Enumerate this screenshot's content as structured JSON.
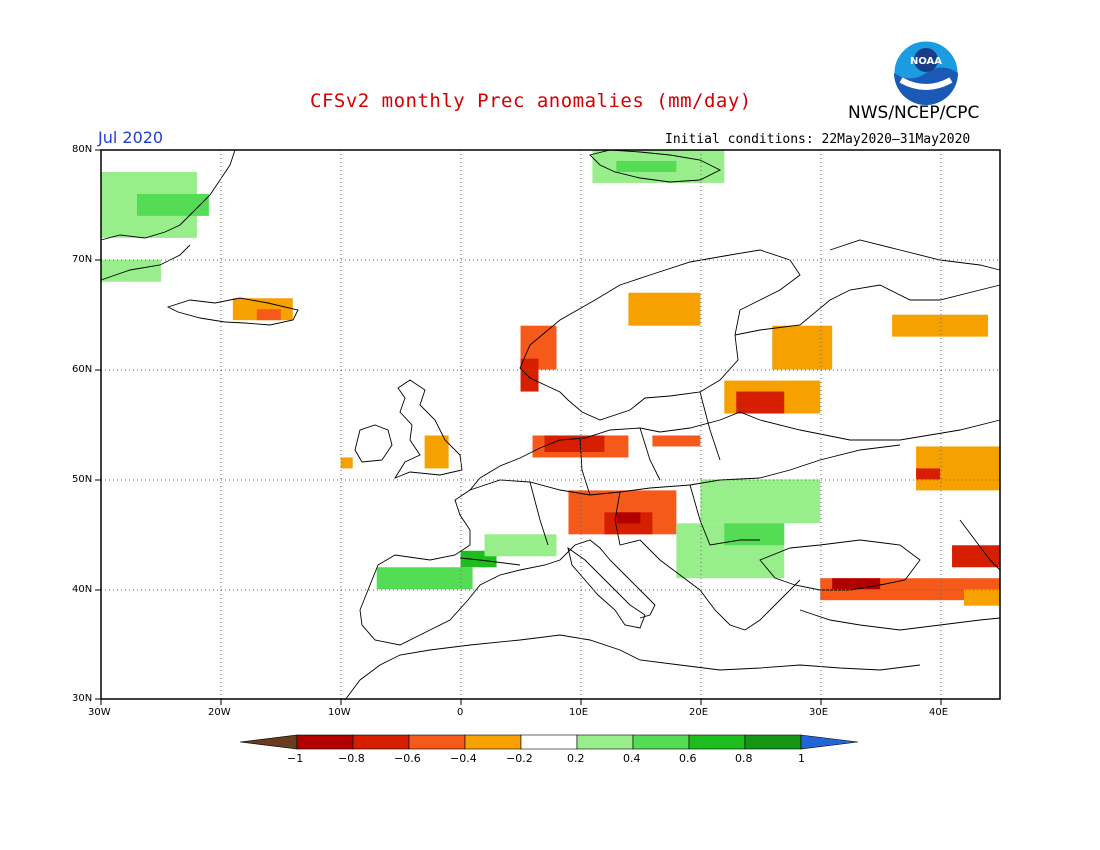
{
  "title": "CFSv2 monthly Prec anomalies (mm/day)",
  "organization": "NWS/NCEP/CPC",
  "logo_text": "NOAA",
  "month": "Jul 2020",
  "initial_conditions": "Initial conditions: 22May2020–31May2020",
  "map": {
    "lon_range": [
      -30,
      45
    ],
    "lat_range": [
      30,
      80
    ],
    "grid": true,
    "lat_labels": [
      "80N",
      "70N",
      "60N",
      "50N",
      "40N",
      "30N"
    ],
    "lon_labels": [
      "30W",
      "20W",
      "10W",
      "0",
      "10E",
      "20E",
      "30E",
      "40E"
    ]
  },
  "colorbar": {
    "labels": [
      "−1",
      "−0.8",
      "−0.6",
      "−0.4",
      "−0.2",
      "0.2",
      "0.4",
      "0.6",
      "0.8",
      "1"
    ],
    "colors": [
      "#6b3a1f",
      "#b20000",
      "#d61e00",
      "#f55a1a",
      "#f7a100",
      "#ffffff",
      "#98ee8a",
      "#54dd54",
      "#1dbd1d",
      "#149614",
      "#2066d6"
    ]
  },
  "anomaly_regions": [
    {
      "name": "greenland",
      "color": "#98ee8a",
      "lon": [
        -30,
        -22
      ],
      "lat": [
        72,
        78
      ]
    },
    {
      "name": "greenland-wet",
      "color": "#54dd54",
      "lon": [
        -27,
        -21
      ],
      "lat": [
        74,
        76
      ]
    },
    {
      "name": "greenland-south",
      "color": "#98ee8a",
      "lon": [
        -30,
        -25
      ],
      "lat": [
        68,
        70
      ]
    },
    {
      "name": "svalbard",
      "color": "#98ee8a",
      "lon": [
        11,
        22
      ],
      "lat": [
        77,
        80
      ]
    },
    {
      "name": "svalbard-wet",
      "color": "#54dd54",
      "lon": [
        13,
        18
      ],
      "lat": [
        78,
        79
      ]
    },
    {
      "name": "iceland",
      "color": "#f7a100",
      "lon": [
        -19,
        -14
      ],
      "lat": [
        64.5,
        66.5
      ]
    },
    {
      "name": "iceland-dry",
      "color": "#f55a1a",
      "lon": [
        -17,
        -15
      ],
      "lat": [
        64.5,
        65.5
      ]
    },
    {
      "name": "norway-west",
      "color": "#f55a1a",
      "lon": [
        5,
        8
      ],
      "lat": [
        60,
        64
      ]
    },
    {
      "name": "norway-coast",
      "color": "#d61e00",
      "lon": [
        5,
        6.5
      ],
      "lat": [
        58,
        61
      ]
    },
    {
      "name": "sweden-north",
      "color": "#f7a100",
      "lon": [
        14,
        20
      ],
      "lat": [
        64,
        67
      ]
    },
    {
      "name": "finland-east",
      "color": "#f7a100",
      "lon": [
        26,
        31
      ],
      "lat": [
        60,
        64
      ]
    },
    {
      "name": "russia-north",
      "color": "#f7a100",
      "lon": [
        36,
        44
      ],
      "lat": [
        63,
        65
      ]
    },
    {
      "name": "baltic",
      "color": "#f7a100",
      "lon": [
        22,
        30
      ],
      "lat": [
        56,
        59
      ]
    },
    {
      "name": "baltic-dry",
      "color": "#d61e00",
      "lon": [
        23,
        27
      ],
      "lat": [
        56,
        58
      ]
    },
    {
      "name": "britain",
      "color": "#f7a100",
      "lon": [
        -3,
        -1
      ],
      "lat": [
        51,
        54
      ]
    },
    {
      "name": "ireland",
      "color": "#f7a100",
      "lon": [
        -10,
        -9
      ],
      "lat": [
        51,
        52
      ]
    },
    {
      "name": "germany",
      "color": "#f55a1a",
      "lon": [
        6,
        14
      ],
      "lat": [
        52,
        54
      ]
    },
    {
      "name": "germany-dry",
      "color": "#d61e00",
      "lon": [
        7,
        12
      ],
      "lat": [
        52.5,
        54
      ]
    },
    {
      "name": "poland",
      "color": "#f55a1a",
      "lon": [
        16,
        20
      ],
      "lat": [
        53,
        54
      ]
    },
    {
      "name": "alps",
      "color": "#f55a1a",
      "lon": [
        9,
        18
      ],
      "lat": [
        45,
        49
      ]
    },
    {
      "name": "alps-dry",
      "color": "#d61e00",
      "lon": [
        12,
        16
      ],
      "lat": [
        45,
        47
      ]
    },
    {
      "name": "alps-core",
      "color": "#b20000",
      "lon": [
        13,
        15
      ],
      "lat": [
        46,
        47
      ]
    },
    {
      "name": "spain",
      "color": "#54dd54",
      "lon": [
        -7,
        1
      ],
      "lat": [
        40,
        42
      ]
    },
    {
      "name": "pyrenees",
      "color": "#1dbd1d",
      "lon": [
        0,
        3
      ],
      "lat": [
        42,
        43.5
      ]
    },
    {
      "name": "france-south",
      "color": "#98ee8a",
      "lon": [
        2,
        8
      ],
      "lat": [
        43,
        45
      ]
    },
    {
      "name": "balkans",
      "color": "#98ee8a",
      "lon": [
        18,
        27
      ],
      "lat": [
        41,
        46
      ]
    },
    {
      "name": "romania",
      "color": "#98ee8a",
      "lon": [
        20,
        30
      ],
      "lat": [
        46,
        50
      ]
    },
    {
      "name": "romania-wet",
      "color": "#54dd54",
      "lon": [
        22,
        27
      ],
      "lat": [
        44,
        46
      ]
    },
    {
      "name": "ukraine-east",
      "color": "#f7a100",
      "lon": [
        38,
        45
      ],
      "lat": [
        49,
        53
      ]
    },
    {
      "name": "ukraine-dry",
      "color": "#d61e00",
      "lon": [
        38,
        40
      ],
      "lat": [
        50,
        51
      ]
    },
    {
      "name": "turkey",
      "color": "#f55a1a",
      "lon": [
        30,
        45
      ],
      "lat": [
        39,
        41
      ]
    },
    {
      "name": "turkey-dry",
      "color": "#b20000",
      "lon": [
        31,
        35
      ],
      "lat": [
        40,
        41
      ]
    },
    {
      "name": "turkey-east",
      "color": "#d61e00",
      "lon": [
        41,
        45
      ],
      "lat": [
        42,
        44
      ]
    },
    {
      "name": "caucasus",
      "color": "#f7a100",
      "lon": [
        42,
        45
      ],
      "lat": [
        38.5,
        40
      ]
    }
  ]
}
